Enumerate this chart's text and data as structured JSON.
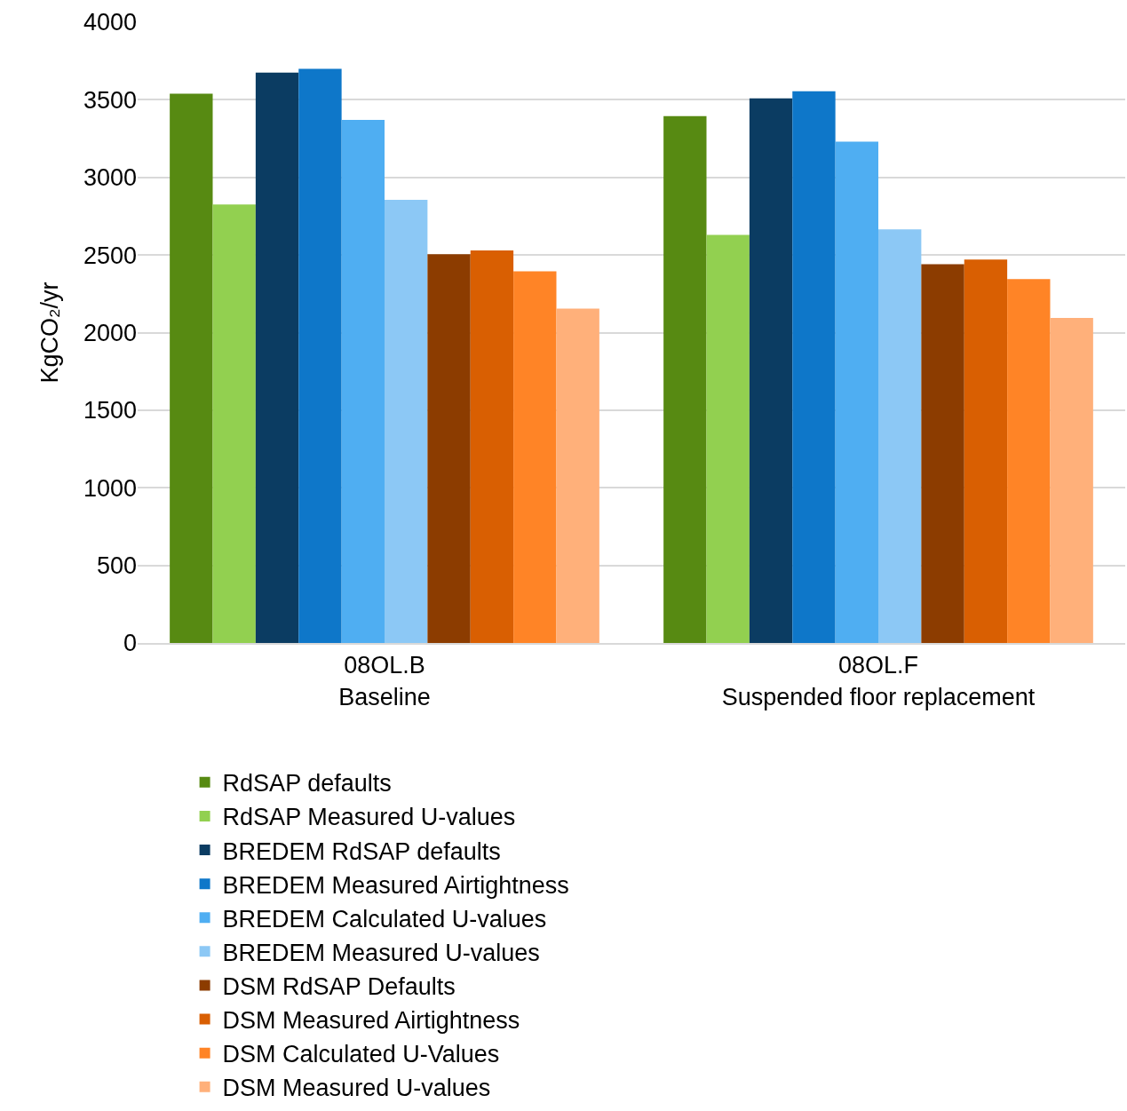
{
  "chart_data": {
    "type": "bar",
    "ylabel": "KgCO₂/yr",
    "categories": [
      "08OL.B\nBaseline",
      "08OL.F\nSuspended floor replacement"
    ],
    "series": [
      {
        "name": "RdSAP defaults",
        "color": "#578a12",
        "values": [
          3540,
          3395
        ]
      },
      {
        "name": "RdSAP Measured U-values",
        "color": "#92d050",
        "values": [
          2825,
          2630
        ]
      },
      {
        "name": "BREDEM RdSAP defaults",
        "color": "#0b3c62",
        "values": [
          3675,
          3510
        ]
      },
      {
        "name": "BREDEM Measured Airtightness",
        "color": "#0e77c9",
        "values": [
          3700,
          3555
        ]
      },
      {
        "name": "BREDEM Calculated U-values",
        "color": "#4faef2",
        "values": [
          3370,
          3230
        ]
      },
      {
        "name": "BREDEM Measured U-values",
        "color": "#8cc8f5",
        "values": [
          2855,
          2665
        ]
      },
      {
        "name": "DSM RdSAP Defaults",
        "color": "#8c3c00",
        "values": [
          2505,
          2440
        ]
      },
      {
        "name": "DSM Measured Airtightness",
        "color": "#d95f02",
        "values": [
          2530,
          2470
        ]
      },
      {
        "name": "DSM Calculated U-Values",
        "color": "#ff8426",
        "values": [
          2395,
          2345
        ]
      },
      {
        "name": "DSM Measured U-values",
        "color": "#ffb07a",
        "values": [
          2155,
          2095
        ]
      }
    ],
    "ylim": [
      0,
      4000
    ],
    "yticks": [
      0,
      500,
      1000,
      1500,
      2000,
      2500,
      3000,
      3500,
      4000
    ],
    "grid": "y",
    "legend": "bottom"
  }
}
